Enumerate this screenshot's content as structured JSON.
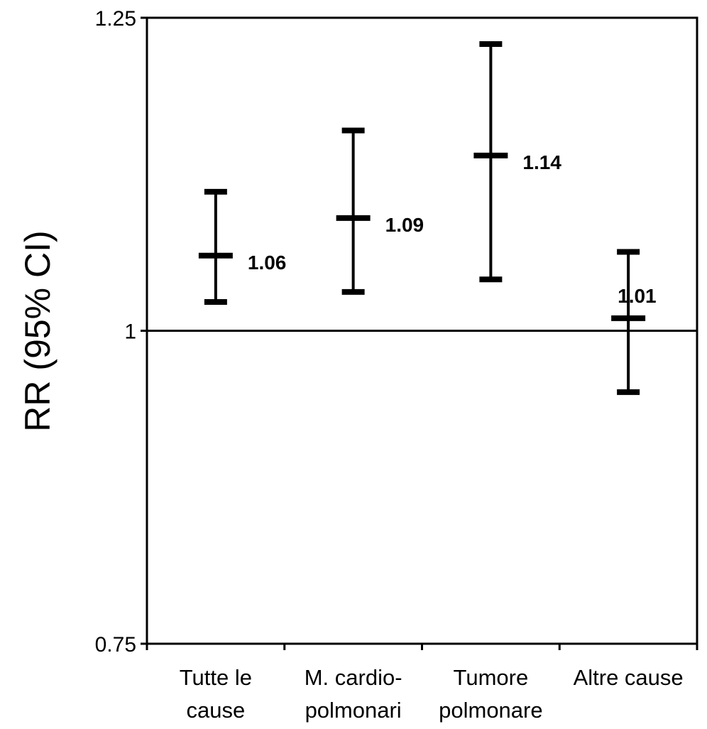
{
  "chart_data": {
    "type": "errorbar",
    "title": "",
    "xlabel": "",
    "ylabel": "RR (95% CI)",
    "ylim": [
      0.75,
      1.25
    ],
    "yticks": [
      "1.25",
      "1",
      "0.75"
    ],
    "yticks_values": [
      1.25,
      1.0,
      0.75
    ],
    "reference_line": 1.0,
    "grid": false,
    "categories": [
      [
        "Tutte le",
        "cause"
      ],
      [
        "M. cardio-",
        "polmonari"
      ],
      [
        "Tumore",
        "polmonare"
      ],
      [
        "Altre cause"
      ]
    ],
    "values": [
      1.06,
      1.09,
      1.14,
      1.01
    ],
    "value_labels": [
      "1.06",
      "1.09",
      "1.14",
      "1.01"
    ],
    "ci_lower": [
      1.023,
      1.031,
      1.041,
      0.951
    ],
    "ci_upper": [
      1.111,
      1.16,
      1.229,
      1.063
    ]
  }
}
